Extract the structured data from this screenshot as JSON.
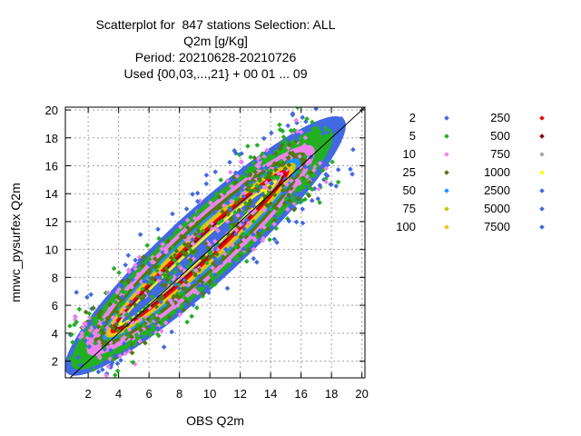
{
  "chart_data": {
    "type": "scatter",
    "title_lines": [
      "Scatterplot for  847 stations Selection: ALL",
      "Q2m [g/Kg]",
      "Period: 20210628-20210726",
      "Used {00,03,...,21} + 00 01 ... 09"
    ],
    "xlabel": "OBS Q2m",
    "ylabel": "mnwc_pysurfex Q2m",
    "xlim": [
      0.5,
      20.2
    ],
    "ylim": [
      0.8,
      20.2
    ],
    "x_ticks": [
      "2",
      "4",
      "6",
      "8",
      "10",
      "12",
      "14",
      "16",
      "18",
      "20"
    ],
    "y_ticks": [
      "2",
      "4",
      "6",
      "8",
      "10",
      "12",
      "14",
      "16",
      "18",
      "20"
    ],
    "grid": true,
    "diagonal_line": true,
    "legend": [
      {
        "label": "2",
        "color": "#4169e1"
      },
      {
        "label": "5",
        "color": "#22b022"
      },
      {
        "label": "10",
        "color": "#ee82ee"
      },
      {
        "label": "25",
        "color": "#4f7a0f"
      },
      {
        "label": "50",
        "color": "#1e90ff"
      },
      {
        "label": "75",
        "color": "#c8c800"
      },
      {
        "label": "100",
        "color": "#f0c020"
      },
      {
        "label": "250",
        "color": "#ee0000"
      },
      {
        "label": "500",
        "color": "#8b0000"
      },
      {
        "label": "750",
        "color": "#a8a8a8"
      },
      {
        "label": "1000",
        "color": "#ffff00"
      },
      {
        "label": "2500",
        "color": "#4169e1"
      },
      {
        "label": "5000",
        "color": "#4169e1"
      },
      {
        "label": "7500",
        "color": "#4169e1"
      }
    ],
    "density_bands": [
      {
        "min_count": 2,
        "color": "#4169e1",
        "spread": 3.3,
        "x_range": [
          0.6,
          18.8
        ]
      },
      {
        "min_count": 5,
        "color": "#22b022",
        "spread": 2.9,
        "x_range": [
          1.0,
          18.0
        ]
      },
      {
        "min_count": 10,
        "color": "#ee82ee",
        "spread": 2.5,
        "x_range": [
          2.0,
          16.8
        ]
      },
      {
        "min_count": 25,
        "color": "#4f7a0f",
        "spread": 2.15,
        "x_range": [
          2.6,
          16.3
        ]
      },
      {
        "min_count": 50,
        "color": "#1e90ff",
        "spread": 1.85,
        "x_range": [
          3.0,
          15.9
        ]
      },
      {
        "min_count": 75,
        "color": "#c8c800",
        "spread": 1.6,
        "x_range": [
          3.2,
          15.6
        ]
      },
      {
        "min_count": 100,
        "color": "#f0c020",
        "spread": 1.45,
        "x_range": [
          3.3,
          15.4
        ]
      },
      {
        "min_count": 250,
        "color": "#ee0000",
        "spread": 1.2,
        "x_range": [
          3.5,
          15.2
        ]
      },
      {
        "min_count": 500,
        "color": "#8b0000",
        "spread": 0.95,
        "x_range": [
          3.7,
          14.9
        ]
      },
      {
        "min_count": 750,
        "color": "#a8a8a8",
        "spread": 0.8,
        "x_range": [
          3.9,
          14.7
        ]
      },
      {
        "min_count": 1000,
        "color": "#ffff00",
        "spread": 0.68,
        "x_range": [
          4.0,
          14.4
        ]
      },
      {
        "min_count": 2500,
        "color": "#4169e1",
        "spread": 0.5,
        "x_range": [
          4.2,
          13.6
        ]
      }
    ]
  }
}
